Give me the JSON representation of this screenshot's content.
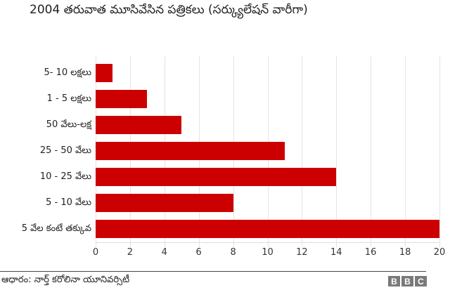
{
  "header": {
    "title": "2004 తరువాత మూసివేసిన పత్రికలు (సర్క్యులేషన్ వారీగా)"
  },
  "footer": {
    "source": "ఆధారం: నార్త్ కరోలినా యూనివర్సిటీ",
    "logo": [
      "B",
      "B",
      "C"
    ]
  },
  "colors": {
    "bar": "#cc0000"
  },
  "chart_data": {
    "type": "bar",
    "orientation": "horizontal",
    "title": "2004 తరువాత మూసివేసిన పత్రికలు (సర్క్యులేషన్ వారీగా)",
    "categories": [
      "5- 10 లక్షలు",
      "1 - 5 లక్షలు",
      "50 వేలు-లక్ష",
      "25 - 50 వేలు",
      "10 - 25 వేలు",
      "5 - 10 వేలు",
      "5 వేల కంటే తక్కువ"
    ],
    "values": [
      1,
      3,
      5,
      11,
      14,
      8,
      20
    ],
    "xlabel": "",
    "ylabel": "",
    "xlim": [
      0,
      20
    ],
    "xticks": [
      "0",
      "2",
      "4",
      "6",
      "8",
      "10",
      "12",
      "14",
      "16",
      "18",
      "20"
    ],
    "grid": true,
    "legend": null,
    "source": "ఆధారం: నార్త్ కరోలినా యూనివర్సిటీ"
  }
}
